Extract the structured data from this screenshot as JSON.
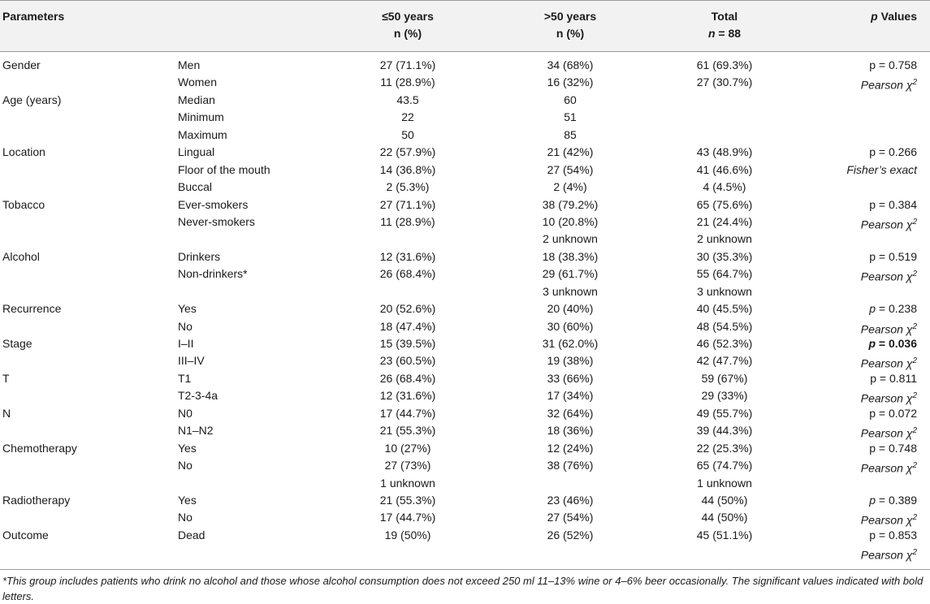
{
  "header": {
    "parameters": "Parameters",
    "col_young_line1": "≤50 years",
    "col_young_line2": "n (%)",
    "col_old_line1": ">50 years",
    "col_old_line2": "n (%)",
    "col_total_line1": "Total",
    "col_total_n_symbol": "n",
    "col_total_n_value": " = 88",
    "col_p_symbol": "p",
    "col_p_word": " Values"
  },
  "rows": [
    {
      "param": "Gender",
      "sub": "Men",
      "young": "27 (71.1%)",
      "old": "34 (68%)",
      "total": "61 (69.3%)",
      "p": "p = 0.758",
      "p_style": "normal"
    },
    {
      "param": "",
      "sub": "Women",
      "young": "11 (28.9%)",
      "old": "16 (32%)",
      "total": "27 (30.7%)",
      "p": "Pearson χ",
      "p_sup": "2",
      "p_style": "italic"
    },
    {
      "param": "Age (years)",
      "sub": "Median",
      "young": "43.5",
      "old": "60",
      "total": "",
      "p": "",
      "p_style": "normal"
    },
    {
      "param": "",
      "sub": "Minimum",
      "young": "22",
      "old": "51",
      "total": "",
      "p": "",
      "p_style": "normal"
    },
    {
      "param": "",
      "sub": "Maximum",
      "young": "50",
      "old": "85",
      "total": "",
      "p": "",
      "p_style": "normal"
    },
    {
      "param": "Location",
      "sub": "Lingual",
      "young": "22 (57.9%)",
      "old": "21 (42%)",
      "total": "43 (48.9%)",
      "p": "p = 0.266",
      "p_style": "normal"
    },
    {
      "param": "",
      "sub": "Floor of the mouth",
      "young": "14 (36.8%)",
      "old": "27 (54%)",
      "total": "41 (46.6%)",
      "p": "Fisher’s exact",
      "p_style": "italic"
    },
    {
      "param": "",
      "sub": "Buccal",
      "young": "2 (5.3%)",
      "old": "2 (4%)",
      "total": "4 (4.5%)",
      "p": "",
      "p_style": "normal"
    },
    {
      "param": "Tobacco",
      "sub": "Ever-smokers",
      "young": "27 (71.1%)",
      "old": "38 (79.2%)",
      "total": "65 (75.6%)",
      "p": "p = 0.384",
      "p_style": "normal"
    },
    {
      "param": "",
      "sub": "Never-smokers",
      "young": "11 (28.9%)",
      "old": "10 (20.8%)",
      "total": "21 (24.4%)",
      "p": "Pearson χ",
      "p_sup": "2",
      "p_style": "italic"
    },
    {
      "param": "",
      "sub": "",
      "young": "",
      "old": "2 unknown",
      "total": "2 unknown",
      "p": "",
      "p_style": "normal"
    },
    {
      "param": "Alcohol",
      "sub": "Drinkers",
      "young": "12 (31.6%)",
      "old": "18 (38.3%)",
      "total": "30 (35.3%)",
      "p": "p = 0.519",
      "p_style": "normal"
    },
    {
      "param": "",
      "sub": "Non-drinkers*",
      "young": "26 (68.4%)",
      "old": "29 (61.7%)",
      "total": "55 (64.7%)",
      "p": "Pearson χ",
      "p_sup": "2",
      "p_style": "italic"
    },
    {
      "param": "",
      "sub": "",
      "young": "",
      "old": "3 unknown",
      "total": "3 unknown",
      "p": "",
      "p_style": "normal"
    },
    {
      "param": "Recurrence",
      "sub": "Yes",
      "young": "20 (52.6%)",
      "old": "20 (40%)",
      "total": "40 (45.5%)",
      "p_symbol": "p",
      "p": " = 0.238",
      "p_style": "pitalic"
    },
    {
      "param": "",
      "sub": "No",
      "young": "18 (47.4%)",
      "old": "30 (60%)",
      "total": "48 (54.5%)",
      "p": "Pearson χ",
      "p_sup": "2",
      "p_style": "italic"
    },
    {
      "param": "Stage",
      "sub": "I–II",
      "young": "15 (39.5%)",
      "old": "31 (62.0%)",
      "total": "46 (52.3%)",
      "p_symbol": "p",
      "p": " = 0.036",
      "p_style": "pbold"
    },
    {
      "param": "",
      "sub": "III–IV",
      "young": "23 (60.5%)",
      "old": "19 (38%)",
      "total": "42 (47.7%)",
      "p": "Pearson χ",
      "p_sup": "2",
      "p_style": "italic"
    },
    {
      "param": "T",
      "sub": "T1",
      "young": "26 (68.4%)",
      "old": "33 (66%)",
      "total": "59 (67%)",
      "p": "p = 0.811",
      "p_style": "normal"
    },
    {
      "param": "",
      "sub": "T2-3-4a",
      "young": "12 (31.6%)",
      "old": "17 (34%)",
      "total": "29 (33%)",
      "p": "Pearson χ",
      "p_sup": "2",
      "p_style": "italic"
    },
    {
      "param": "N",
      "sub": "N0",
      "young": "17 (44.7%)",
      "old": "32 (64%)",
      "total": "49 (55.7%)",
      "p": "p = 0.072",
      "p_style": "normal"
    },
    {
      "param": "",
      "sub": "N1–N2",
      "young": "21 (55.3%)",
      "old": "18 (36%)",
      "total": "39 (44.3%)",
      "p": "Pearson χ",
      "p_sup": "2",
      "p_style": "italic"
    },
    {
      "param": "Chemotherapy",
      "sub": "Yes",
      "young": "10 (27%)",
      "old": "12 (24%)",
      "total": "22 (25.3%)",
      "p": "p = 0.748",
      "p_style": "normal"
    },
    {
      "param": "",
      "sub": "No",
      "young": "27 (73%)",
      "old": "38 (76%)",
      "total": "65 (74.7%)",
      "p": "Pearson χ",
      "p_sup": "2",
      "p_style": "italic"
    },
    {
      "param": "",
      "sub": "",
      "young": "1 unknown",
      "old": "",
      "total": "1 unknown",
      "p": "",
      "p_style": "normal"
    },
    {
      "param": "Radiotherapy",
      "sub": "Yes",
      "young": "21 (55.3%)",
      "old": "23 (46%)",
      "total": "44 (50%)",
      "p_symbol": "p",
      "p": " = 0.389",
      "p_style": "pitalic"
    },
    {
      "param": "",
      "sub": "No",
      "young": "17 (44.7%)",
      "old": "27 (54%)",
      "total": "44 (50%)",
      "p": "Pearson χ",
      "p_sup": "2",
      "p_style": "italic"
    },
    {
      "param": "Outcome",
      "sub": "Dead",
      "young": "19 (50%)",
      "old": "26 (52%)",
      "total": "45 (51.1%)",
      "p": "p = 0.853",
      "p_style": "normal"
    },
    {
      "param": "",
      "sub": "",
      "young": "",
      "old": "",
      "total": "",
      "p": "Pearson χ",
      "p_sup": "2",
      "p_style": "italic"
    }
  ],
  "footnote": "*This group includes patients who drink no alcohol and those whose alcohol consumption does not exceed 250 ml 11–13% wine or 4–6% beer occasionally. The significant values indicated with bold letters."
}
